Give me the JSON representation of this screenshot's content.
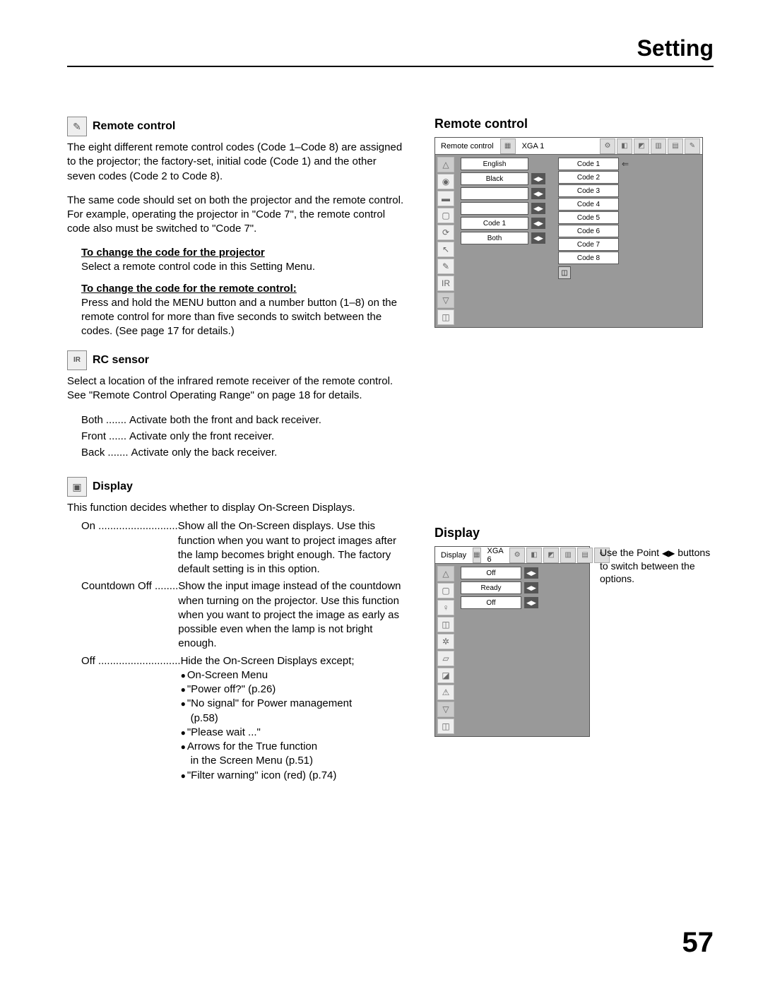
{
  "page": {
    "title": "Setting",
    "number": "57"
  },
  "sections": {
    "remote_control": {
      "title": "Remote control",
      "para1": "The eight different remote control codes (Code 1–Code 8) are assigned to the projector; the factory-set, initial code (Code 1) and the other seven codes (Code 2 to Code 8).",
      "para2": "The same code should set on both the projector and the remote control. For example, operating the projector in \"Code 7\", the remote control code also must be switched to \"Code 7\".",
      "sub1_title": "To change the code for the projector",
      "sub1_text": "Select a remote control code in this Setting Menu.",
      "sub2_title": "To change the code for the remote control:",
      "sub2_text": "Press and hold the MENU button and a number button (1–8) on the remote control for more than five seconds to switch between the codes. (See page 17 for details.)"
    },
    "rc_sensor": {
      "title": "RC sensor",
      "para": "Select a location of the infrared remote receiver of the remote control. See \"Remote Control Operating Range\" on page 18 for details.",
      "defs": [
        {
          "term": "Both",
          "dots": ".......",
          "desc": "Activate both the front and back receiver."
        },
        {
          "term": "Front",
          "dots": "......",
          "desc": "Activate only the front receiver."
        },
        {
          "term": "Back",
          "dots": ".......",
          "desc": "Activate only the back receiver."
        }
      ]
    },
    "display": {
      "title": "Display",
      "para": "This function decides whether to display On-Screen Displays.",
      "rows": [
        {
          "term": "On ...........................",
          "desc": "Show all the On-Screen displays. Use this function when you want to project images after the lamp becomes bright enough. The factory default setting is in this option."
        },
        {
          "term": "Countdown Off ........",
          "desc": "Show the input image instead of the countdown when turning on the projector. Use this function when you want to project the image as early as possible even when the lamp is not bright enough."
        },
        {
          "term": "Off ............................",
          "desc_intro": "Hide the On-Screen Displays except;",
          "bullets": [
            "On-Screen Menu",
            "\"Power off?\" (p.26)",
            "\"No signal\" for Power management",
            "  (p.58)",
            "\"Please wait ...\"",
            "Arrows for the True function",
            "  in the Screen Menu (p.51)",
            "\"Filter warning\" icon (red) (p.74)"
          ]
        }
      ]
    }
  },
  "right": {
    "remote_control_title": "Remote control",
    "display_title": "Display",
    "display_note_prefix": "Use the Point ",
    "display_note_suffix": " buttons to switch between the options.",
    "osd_rc": {
      "top_label": "Remote control",
      "top_mode": "XGA 1",
      "left_values": [
        "English",
        "Black",
        "",
        "",
        "Code 1",
        "Both"
      ],
      "codes": [
        "Code 1",
        "Code 2",
        "Code 3",
        "Code 4",
        "Code 5",
        "Code 6",
        "Code 7",
        "Code 8"
      ]
    },
    "osd_display": {
      "top_label": "Display",
      "top_mode": "XGA 6",
      "values": [
        "Off",
        "Ready",
        "Off"
      ]
    }
  }
}
